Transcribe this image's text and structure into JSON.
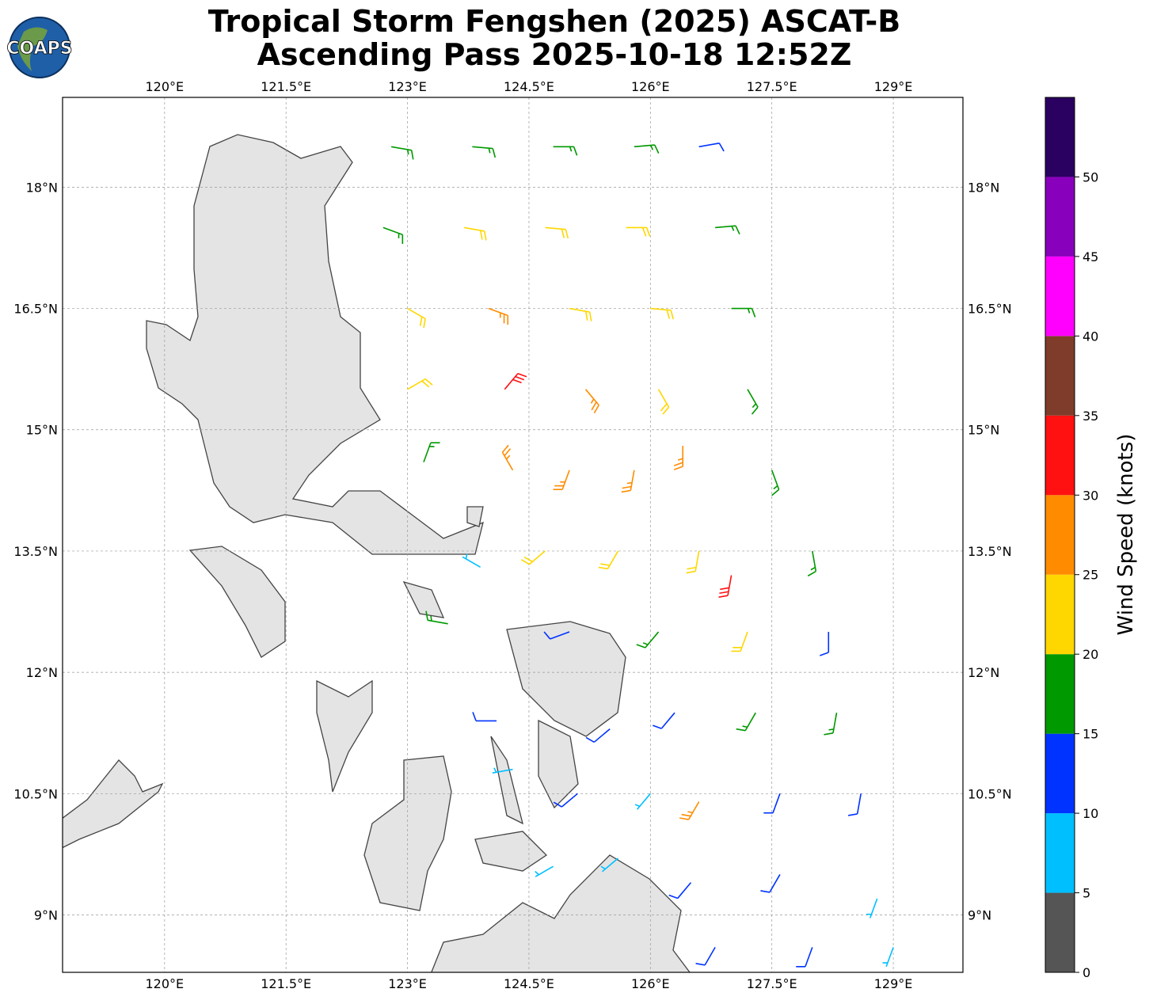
{
  "chart_data": {
    "type": "barbs",
    "title": [
      "Tropical Storm Fengshen (2025) ASCAT-B",
      "Ascending Pass 2025-10-18 12:52Z"
    ],
    "logo": "COAPS",
    "xlim": [
      118.74,
      129.86
    ],
    "ylim": [
      8.29,
      19.11
    ],
    "xticks": [
      {
        "value": 120,
        "label": "120°E"
      },
      {
        "value": 121.5,
        "label": "121.5°E"
      },
      {
        "value": 123,
        "label": "123°E"
      },
      {
        "value": 124.5,
        "label": "124.5°E"
      },
      {
        "value": 126,
        "label": "126°E"
      },
      {
        "value": 127.5,
        "label": "127.5°E"
      },
      {
        "value": 129,
        "label": "129°E"
      }
    ],
    "yticks": [
      {
        "value": 9,
        "label": "9°N"
      },
      {
        "value": 10.5,
        "label": "10.5°N"
      },
      {
        "value": 12,
        "label": "12°N"
      },
      {
        "value": 13.5,
        "label": "13.5°N"
      },
      {
        "value": 15,
        "label": "15°N"
      },
      {
        "value": 16.5,
        "label": "16.5°N"
      },
      {
        "value": 18,
        "label": "18°N"
      }
    ],
    "grid": true,
    "colorbar": {
      "label": "Wind Speed (knots)",
      "clim": [
        0,
        55
      ],
      "ticks": [
        0,
        5,
        10,
        15,
        20,
        25,
        30,
        35,
        40,
        45,
        50
      ],
      "colors": [
        "#555555",
        "#00bfff",
        "#0033ff",
        "#009900",
        "#ffd700",
        "#ff8c00",
        "#ff1111",
        "#7f3c2a",
        "#ff00ff",
        "#8800bb",
        "#2a0060"
      ]
    },
    "barbs": {
      "lon": [
        122.8,
        123.8,
        124.8,
        125.8,
        126.6,
        122.7,
        123.7,
        124.7,
        125.7,
        126.8,
        123.0,
        124.0,
        125.0,
        126.0,
        127.0,
        123.0,
        124.2,
        125.2,
        126.1,
        127.2,
        123.2,
        124.3,
        125.0,
        125.8,
        126.4,
        127.5,
        123.9,
        124.7,
        125.6,
        126.6,
        127.0,
        128.0,
        123.5,
        125.0,
        126.1,
        127.2,
        128.2,
        124.1,
        125.5,
        126.3,
        127.3,
        128.3,
        124.3,
        125.1,
        126.0,
        126.6,
        127.6,
        128.6,
        124.8,
        125.6,
        126.5,
        127.6,
        128.8,
        126.8,
        128.0,
        129.0
      ],
      "lat": [
        18.5,
        18.5,
        18.5,
        18.5,
        18.5,
        17.5,
        17.5,
        17.5,
        17.5,
        17.5,
        16.5,
        16.5,
        16.5,
        16.5,
        16.5,
        15.5,
        15.5,
        15.5,
        15.5,
        15.5,
        14.6,
        14.5,
        14.5,
        14.5,
        14.8,
        14.5,
        13.3,
        13.5,
        13.5,
        13.5,
        13.2,
        13.5,
        12.6,
        12.5,
        12.5,
        12.5,
        12.5,
        11.4,
        11.3,
        11.5,
        11.5,
        11.5,
        10.8,
        10.5,
        10.5,
        10.4,
        10.5,
        10.5,
        9.6,
        9.7,
        9.4,
        9.5,
        9.2,
        8.6,
        8.6,
        8.6
      ],
      "speed": [
        17,
        17,
        17,
        17,
        13,
        17,
        22,
        22,
        22,
        17,
        22,
        27,
        22,
        22,
        17,
        22,
        32,
        27,
        22,
        17,
        17,
        27,
        27,
        27,
        27,
        17,
        8,
        22,
        22,
        22,
        32,
        17,
        17,
        12,
        17,
        22,
        12,
        12,
        12,
        12,
        17,
        17,
        8,
        12,
        8,
        27,
        12,
        12,
        8,
        8,
        12,
        12,
        8,
        12,
        12,
        8
      ],
      "direction": [
        100,
        95,
        90,
        85,
        80,
        110,
        100,
        95,
        90,
        85,
        120,
        110,
        100,
        95,
        90,
        60,
        40,
        140,
        150,
        150,
        20,
        330,
        200,
        190,
        180,
        160,
        300,
        230,
        210,
        190,
        190,
        170,
        280,
        250,
        220,
        200,
        180,
        270,
        230,
        220,
        210,
        190,
        260,
        230,
        220,
        210,
        200,
        190,
        240,
        230,
        220,
        210,
        200,
        210,
        200,
        200
      ]
    }
  }
}
